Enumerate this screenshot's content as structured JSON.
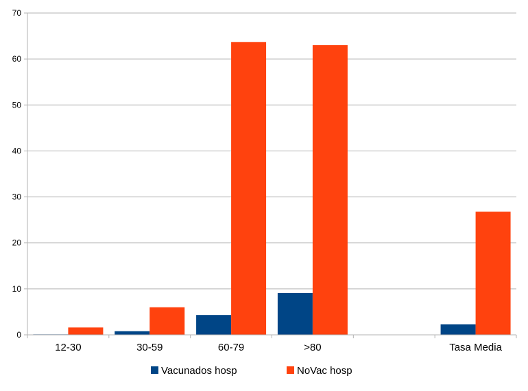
{
  "chart_data": {
    "type": "bar",
    "categories": [
      "12-30",
      "30-59",
      "60-79",
      ">80",
      "",
      "Tasa Media"
    ],
    "series": [
      {
        "name": "Vacunados hosp",
        "values": [
          0.1,
          0.8,
          4.3,
          9.1,
          null,
          2.3
        ],
        "color": "#004586"
      },
      {
        "name": "NoVac hosp",
        "values": [
          1.6,
          6.0,
          63.7,
          63.0,
          null,
          26.8
        ],
        "color": "#ff420e"
      }
    ],
    "title": "",
    "xlabel": "",
    "ylabel": "",
    "ylim": [
      0,
      70
    ],
    "yticks": [
      0,
      10,
      20,
      30,
      40,
      50,
      60,
      70
    ],
    "grid": true,
    "legend_position": "bottom"
  }
}
